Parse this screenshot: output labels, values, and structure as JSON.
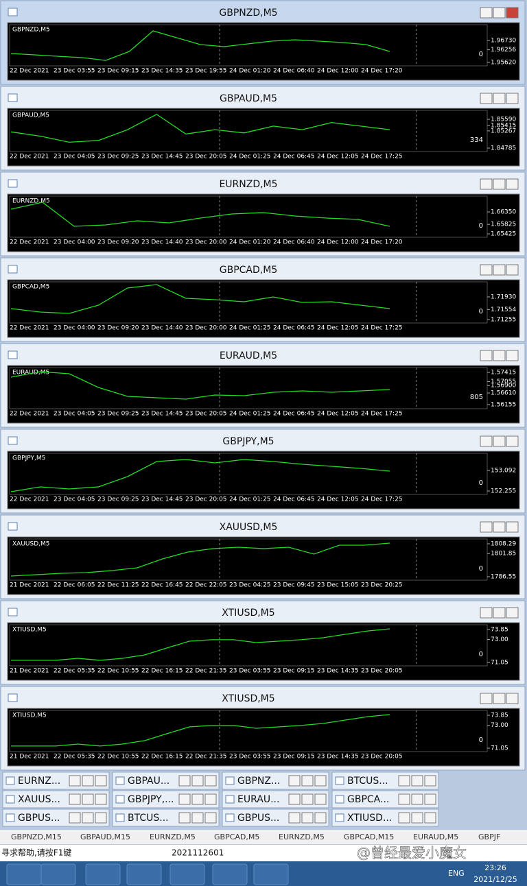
{
  "windows": [
    {
      "title": "GBPNZD,M5",
      "symbol": "GBPNZD,M5",
      "side_label": "0",
      "ylim": [
        1.9541,
        1.9749
      ],
      "yticks": [
        {
          "value": 1.9673,
          "label": "1.96730"
        },
        {
          "value": 1.96256,
          "label": "1.96256"
        },
        {
          "value": 1.9562,
          "label": "1.95620"
        }
      ],
      "xlabels": [
        "22 Dec 2021",
        "23 Dec 03:55",
        "23 Dec 09:15",
        "23 Dec 14:35",
        "23 Dec 19:55",
        "24 Dec 01:20",
        "24 Dec 06:40",
        "24 Dec 12:00",
        "24 Dec 17:20"
      ],
      "values": [
        1.96067,
        1.95998,
        1.95928,
        1.95859,
        1.9572,
        1.96171,
        1.97212,
        1.96865,
        1.96518,
        1.96414,
        1.96553,
        1.96692,
        1.96761,
        1.96692,
        1.96622,
        1.96518,
        1.96171
      ]
    },
    {
      "title": "GBPAUD,M5",
      "symbol": "GBPAUD,M5",
      "side_label": "334",
      "ylim": [
        1.8467,
        1.8582
      ],
      "yticks": [
        {
          "value": 1.8559,
          "label": "1.85590"
        },
        {
          "value": 1.85415,
          "label": "1.85415"
        },
        {
          "value": 1.85267,
          "label": "1.85267"
        },
        {
          "value": 1.84785,
          "label": "1.84785"
        }
      ],
      "xlabels": [
        "22 Dec 2021",
        "23 Dec 04:05",
        "23 Dec 09:25",
        "23 Dec 14:45",
        "23 Dec 20:05",
        "24 Dec 01:25",
        "24 Dec 06:45",
        "24 Dec 12:05",
        "24 Dec 17:25"
      ],
      "values": [
        1.8524,
        1.8512,
        1.8495,
        1.85,
        1.853,
        1.8573,
        1.8518,
        1.853,
        1.8521,
        1.854,
        1.853,
        1.855,
        1.854,
        1.853
      ]
    },
    {
      "title": "EURNZD,M5",
      "symbol": "EURNZD,M5",
      "side_label": "0",
      "ylim": [
        1.65252,
        1.66986
      ],
      "yticks": [
        {
          "value": 1.6635,
          "label": "1.66350"
        },
        {
          "value": 1.65825,
          "label": "1.65825"
        },
        {
          "value": 1.65425,
          "label": "1.65425"
        }
      ],
      "xlabels": [
        "22 Dec 2021",
        "23 Dec 04:00",
        "23 Dec 09:20",
        "23 Dec 14:40",
        "23 Dec 20:00",
        "24 Dec 01:20",
        "24 Dec 06:40",
        "24 Dec 12:00",
        "24 Dec 17:20"
      ],
      "values": [
        1.66466,
        1.66755,
        1.65743,
        1.65801,
        1.65975,
        1.65888,
        1.6609,
        1.66263,
        1.66321,
        1.66177,
        1.6609,
        1.66032,
        1.65743
      ]
    },
    {
      "title": "GBPCAD,M5",
      "symbol": "GBPCAD,M5",
      "side_label": "0",
      "ylim": [
        1.71132,
        1.72359
      ],
      "yticks": [
        {
          "value": 1.7193,
          "label": "1.71930"
        },
        {
          "value": 1.71554,
          "label": "1.71554"
        },
        {
          "value": 1.71255,
          "label": "1.71255"
        }
      ],
      "xlabels": [
        "22 Dec 2021",
        "23 Dec 04:00",
        "23 Dec 09:20",
        "23 Dec 14:40",
        "23 Dec 20:00",
        "24 Dec 01:25",
        "24 Dec 06:45",
        "24 Dec 12:05",
        "24 Dec 17:25"
      ],
      "values": [
        1.71582,
        1.7148,
        1.71439,
        1.71684,
        1.72195,
        1.72298,
        1.71889,
        1.71848,
        1.71786,
        1.7193,
        1.71766,
        1.71786,
        1.71684,
        1.71582
      ]
    },
    {
      "title": "EURAUD,M5",
      "symbol": "EURAUD,M5",
      "side_label": "805",
      "ylim": [
        1.55967,
        1.57576
      ],
      "yticks": [
        {
          "value": 1.57415,
          "label": "1.57415"
        },
        {
          "value": 1.57055,
          "label": "1.57055"
        },
        {
          "value": 1.569,
          "label": "1.56900"
        },
        {
          "value": 1.5661,
          "label": "1.56610"
        },
        {
          "value": 1.56155,
          "label": "1.56155"
        }
      ],
      "xlabels": [
        "22 Dec 2021",
        "23 Dec 04:05",
        "23 Dec 09:25",
        "23 Dec 14:45",
        "23 Dec 20:05",
        "24 Dec 01:25",
        "24 Dec 06:45",
        "24 Dec 12:05",
        "24 Dec 17:25"
      ],
      "values": [
        1.57228,
        1.57442,
        1.57362,
        1.56826,
        1.56477,
        1.56424,
        1.5637,
        1.56531,
        1.56504,
        1.56638,
        1.56692,
        1.56638,
        1.56692,
        1.56745
      ]
    },
    {
      "title": "GBPJPY,M5",
      "symbol": "GBPJPY,M5",
      "side_label": "0",
      "ylim": [
        152.088,
        153.762
      ],
      "yticks": [
        {
          "value": 153.092,
          "label": "153.092"
        },
        152.255
      ],
      "xlabels": [
        "22 Dec 2021",
        "23 Dec 04:05",
        "23 Dec 09:25",
        "23 Dec 14:45",
        "23 Dec 20:05",
        "24 Dec 01:25",
        "24 Dec 06:45",
        "24 Dec 12:05",
        "24 Dec 17:25"
      ],
      "values": [
        152.228,
        152.423,
        152.339,
        152.423,
        152.841,
        153.455,
        153.539,
        153.399,
        153.539,
        153.455,
        153.344,
        153.26,
        153.176,
        153.065
      ]
    },
    {
      "title": "XAUUSD,M5",
      "symbol": "XAUUSD,M5",
      "side_label": "0",
      "ylim": [
        1783.83,
        1811.01
      ],
      "yticks": [
        1808.29,
        1801.85,
        1786.55
      ],
      "xlabels": [
        "21 Dec 2021",
        "22 Dec 06:05",
        "22 Dec 11:25",
        "22 Dec 16:45",
        "22 Dec 22:05",
        "23 Dec 04:25",
        "23 Dec 09:45",
        "23 Dec 15:05",
        "23 Dec 20:25"
      ],
      "values": [
        1787,
        1787.91,
        1788.81,
        1789.27,
        1790.63,
        1792.44,
        1798.33,
        1802.86,
        1805.12,
        1806.03,
        1805.12,
        1806.03,
        1801.5,
        1807.39,
        1807.39,
        1808.75
      ]
    },
    {
      "title": "XTIUSD,M5",
      "symbol": "XTIUSD,M5",
      "side_label": "0",
      "ylim": [
        70.7,
        74.2
      ],
      "yticks": [
        73.85,
        {
          "value": 73,
          "label": "73.00"
        },
        71.05
      ],
      "xlabels": [
        "21 Dec 2021",
        "22 Dec 05:35",
        "22 Dec 10:55",
        "22 Dec 16:15",
        "22 Dec 21:35",
        "23 Dec 03:55",
        "23 Dec 09:15",
        "23 Dec 14:35",
        "23 Dec 20:05"
      ],
      "values": [
        71.23,
        71.23,
        71.23,
        71.4,
        71.23,
        71.4,
        71.69,
        72.28,
        72.86,
        72.98,
        72.98,
        72.74,
        72.86,
        72.98,
        73.15,
        73.44,
        73.73,
        73.91
      ]
    },
    {
      "title": "XTIUSD,M5",
      "symbol": "XTIUSD,M5",
      "side_label": "0",
      "ylim": [
        70.7,
        74.2
      ],
      "yticks": [
        73.85,
        {
          "value": 73,
          "label": "73.00"
        },
        71.05
      ],
      "xlabels": [
        "21 Dec 2021",
        "22 Dec 05:35",
        "22 Dec 10:55",
        "22 Dec 16:15",
        "22 Dec 21:35",
        "23 Dec 03:55",
        "23 Dec 09:15",
        "23 Dec 14:35",
        "23 Dec 20:05"
      ],
      "values": [
        71.23,
        71.23,
        71.23,
        71.4,
        71.23,
        71.4,
        71.69,
        72.28,
        72.86,
        72.98,
        72.98,
        72.74,
        72.86,
        72.98,
        73.15,
        73.44,
        73.73,
        73.91
      ]
    }
  ],
  "minimized": [
    [
      "EURNZ...",
      "GBPAU...",
      "GBPNZ...",
      "BTCUS..."
    ],
    [
      "XAUUS...",
      "GBPJPY,...",
      "EURAU...",
      "GBPCA..."
    ],
    [
      "GBPUS...",
      "BTCUS...",
      "GBPUS...",
      "XTIUSD..."
    ]
  ],
  "tabs": [
    "GBPNZD,M15",
    "GBPAUD,M15",
    "EURNZD,M5",
    "GBPCAD,M5",
    "EURNZD,M5",
    "GBPCAD,M15",
    "EURAUD,M5",
    "GBPJF"
  ],
  "status": {
    "help": "寻求帮助,请按F1键",
    "account": "2021112601",
    "watermark": "@曾经最爱小魔女"
  },
  "taskbar": {
    "lang": "ENG",
    "time": "23:26",
    "date": "2021/12/25"
  }
}
